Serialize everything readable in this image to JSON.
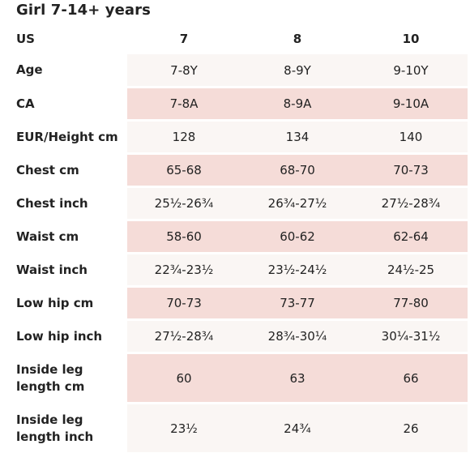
{
  "title": "Girl 7-14+ years",
  "columns": [
    "7",
    "8",
    "10"
  ],
  "header_label": "US",
  "rows": [
    {
      "label": "Age",
      "values": [
        "7-8Y",
        "8-9Y",
        "9-10Y"
      ]
    },
    {
      "label": "CA",
      "values": [
        "7-8A",
        "8-9A",
        "9-10A"
      ]
    },
    {
      "label": "EUR/Height cm",
      "values": [
        "128",
        "134",
        "140"
      ]
    },
    {
      "label": "Chest cm",
      "values": [
        "65-68",
        "68-70",
        "70-73"
      ]
    },
    {
      "label": "Chest inch",
      "values": [
        "25½-26¾",
        "26¾-27½",
        "27½-28¾"
      ]
    },
    {
      "label": "Waist cm",
      "values": [
        "58-60",
        "60-62",
        "62-64"
      ]
    },
    {
      "label": "Waist inch",
      "values": [
        "22¾-23½",
        "23½-24½",
        "24½-25"
      ]
    },
    {
      "label": "Low hip cm",
      "values": [
        "70-73",
        "73-77",
        "77-80"
      ]
    },
    {
      "label": "Low hip inch",
      "values": [
        "27½-28¾",
        "28¾-30¼",
        "30¼-31½"
      ]
    },
    {
      "label": "Inside leg length cm",
      "values": [
        "60",
        "63",
        "66"
      ]
    },
    {
      "label": "Inside leg length inch",
      "values": [
        "23½",
        "24¾",
        "26"
      ]
    }
  ],
  "colors": {
    "shaded": "#f5dcd8",
    "light": "#faf6f4",
    "text": "#222222"
  }
}
